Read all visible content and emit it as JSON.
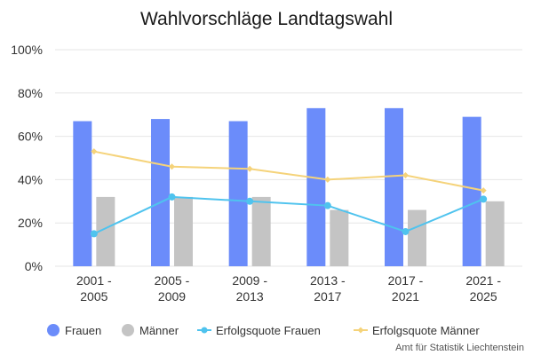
{
  "chart_data": {
    "type": "bar",
    "title": "Wahlvorschläge Landtagswahl",
    "credit": "Amt für Statistik Liechtenstein",
    "categories": [
      [
        "2001 -",
        "2005"
      ],
      [
        "2005 -",
        "2009"
      ],
      [
        "2009 -",
        "2013"
      ],
      [
        "2013 -",
        "2017"
      ],
      [
        "2017 -",
        "2021"
      ],
      [
        "2021 -",
        "2025"
      ]
    ],
    "ylim": [
      0,
      100
    ],
    "yticks": [
      "0%",
      "20%",
      "40%",
      "60%",
      "80%",
      "100%"
    ],
    "grid": true,
    "legend_position": "bottom",
    "series": [
      {
        "name": "Frauen",
        "type": "bar",
        "color": "#6b8cfa",
        "values": [
          67,
          68,
          67,
          73,
          73,
          69
        ]
      },
      {
        "name": "Männer",
        "type": "bar",
        "color": "#c4c4c4",
        "values": [
          32,
          32,
          32,
          26,
          26,
          30
        ]
      },
      {
        "name": "Erfolgsquote Frauen",
        "type": "line",
        "color": "#4fc3ee",
        "marker": "circle",
        "values": [
          15,
          32,
          30,
          28,
          16,
          31
        ]
      },
      {
        "name": "Erfolgsquote Männer",
        "type": "line",
        "color": "#f5d37a",
        "marker": "diamond",
        "values": [
          53,
          46,
          45,
          40,
          42,
          35
        ]
      }
    ]
  }
}
